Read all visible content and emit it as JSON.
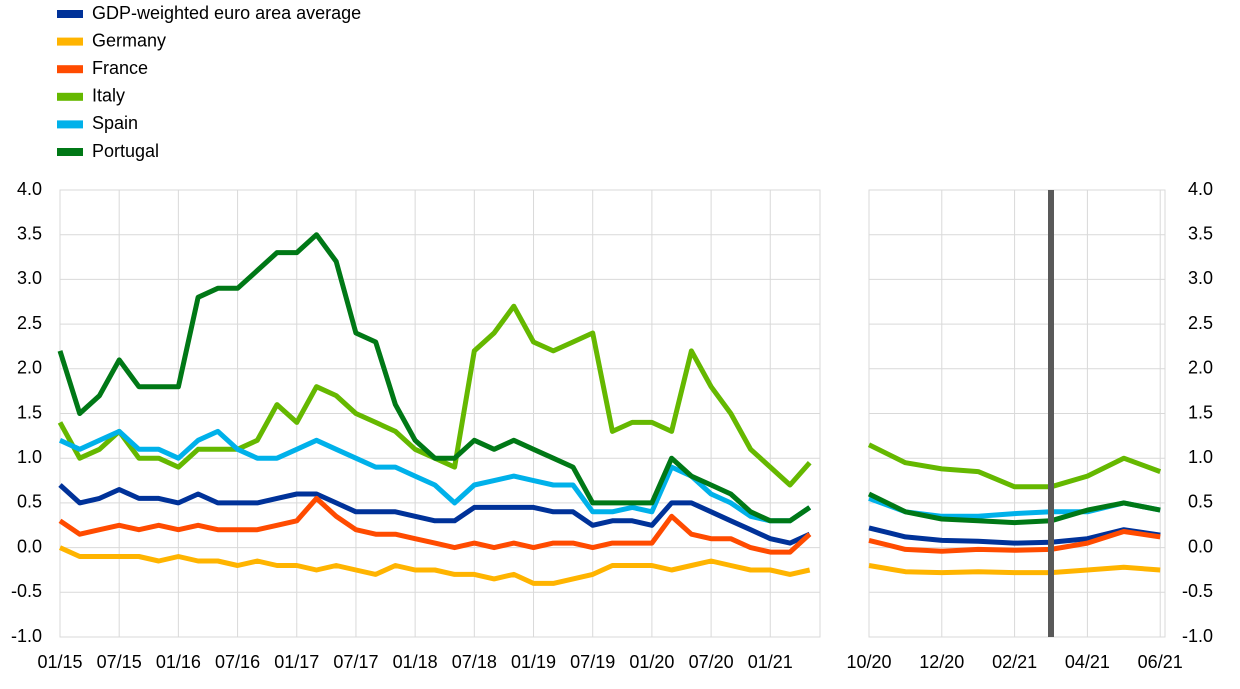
{
  "chart_data": [
    {
      "type": "line",
      "x": [
        "01/15",
        "03/15",
        "05/15",
        "07/15",
        "09/15",
        "11/15",
        "01/16",
        "03/16",
        "05/16",
        "07/16",
        "09/16",
        "11/16",
        "01/17",
        "03/17",
        "05/17",
        "07/17",
        "09/17",
        "11/17",
        "01/18",
        "03/18",
        "05/18",
        "07/18",
        "09/18",
        "11/18",
        "01/19",
        "03/19",
        "05/19",
        "07/19",
        "09/19",
        "11/19",
        "01/20",
        "03/20",
        "05/20",
        "07/20",
        "09/20",
        "11/20",
        "01/21",
        "03/21",
        "05/21"
      ],
      "xticks": [
        "01/15",
        "07/15",
        "01/16",
        "07/16",
        "01/17",
        "07/17",
        "01/18",
        "07/18",
        "01/19",
        "07/19",
        "01/20",
        "07/20",
        "01/21"
      ],
      "ylim": [
        -1,
        4
      ],
      "yticks": [
        {
          "value": -1,
          "label": "-1.0"
        },
        -0.5,
        {
          "value": 0,
          "label": "0.0"
        },
        0.5,
        {
          "value": 1,
          "label": "1.0"
        },
        1.5,
        {
          "value": 2,
          "label": "2.0"
        },
        2.5,
        {
          "value": 3,
          "label": "3.0"
        },
        3.5,
        {
          "value": 4,
          "label": "4.0"
        }
      ],
      "grid": true,
      "series": [
        {
          "name": "GDP-weighted euro area average",
          "color": "#003299",
          "values": [
            0.7,
            0.5,
            0.55,
            0.65,
            0.55,
            0.55,
            0.5,
            0.6,
            0.5,
            0.5,
            0.5,
            0.55,
            0.6,
            0.6,
            0.5,
            0.4,
            0.4,
            0.4,
            0.35,
            0.3,
            0.3,
            0.45,
            0.45,
            0.45,
            0.45,
            0.4,
            0.4,
            0.25,
            0.3,
            0.3,
            0.25,
            0.5,
            0.5,
            0.4,
            0.3,
            0.2,
            0.1,
            0.05,
            0.15
          ]
        },
        {
          "name": "Germany",
          "color": "#ffb400",
          "values": [
            0.0,
            -0.1,
            -0.1,
            -0.1,
            -0.1,
            -0.15,
            -0.1,
            -0.15,
            -0.15,
            -0.2,
            -0.15,
            -0.2,
            -0.2,
            -0.25,
            -0.2,
            -0.25,
            -0.3,
            -0.2,
            -0.25,
            -0.25,
            -0.3,
            -0.3,
            -0.35,
            -0.3,
            -0.4,
            -0.4,
            -0.35,
            -0.3,
            -0.2,
            -0.2,
            -0.2,
            -0.25,
            -0.2,
            -0.15,
            -0.2,
            -0.25,
            -0.25,
            -0.3,
            -0.25
          ]
        },
        {
          "name": "France",
          "color": "#ff4b00",
          "values": [
            0.3,
            0.15,
            0.2,
            0.25,
            0.2,
            0.25,
            0.2,
            0.25,
            0.2,
            0.2,
            0.2,
            0.25,
            0.3,
            0.55,
            0.35,
            0.2,
            0.15,
            0.15,
            0.1,
            0.05,
            0.0,
            0.05,
            0.0,
            0.05,
            0.0,
            0.05,
            0.05,
            0.0,
            0.05,
            0.05,
            0.05,
            0.35,
            0.15,
            0.1,
            0.1,
            0.0,
            -0.05,
            -0.05,
            0.15
          ]
        },
        {
          "name": "Italy",
          "color": "#65b800",
          "values": [
            1.4,
            1.0,
            1.1,
            1.3,
            1.0,
            1.0,
            0.9,
            1.1,
            1.1,
            1.1,
            1.2,
            1.6,
            1.4,
            1.8,
            1.7,
            1.5,
            1.4,
            1.3,
            1.1,
            1.0,
            0.9,
            2.2,
            2.4,
            2.7,
            2.3,
            2.2,
            2.3,
            2.4,
            1.3,
            1.4,
            1.4,
            1.3,
            2.2,
            1.8,
            1.5,
            1.1,
            0.9,
            0.7,
            0.95
          ]
        },
        {
          "name": "Spain",
          "color": "#00b1ea",
          "values": [
            1.2,
            1.1,
            1.2,
            1.3,
            1.1,
            1.1,
            1.0,
            1.2,
            1.3,
            1.1,
            1.0,
            1.0,
            1.1,
            1.2,
            1.1,
            1.0,
            0.9,
            0.9,
            0.8,
            0.7,
            0.5,
            0.7,
            0.75,
            0.8,
            0.75,
            0.7,
            0.7,
            0.4,
            0.4,
            0.45,
            0.4,
            0.9,
            0.8,
            0.6,
            0.5,
            0.35,
            0.3,
            0.3,
            0.45
          ]
        },
        {
          "name": "Portugal",
          "color": "#007816",
          "values": [
            2.2,
            1.5,
            1.7,
            2.1,
            1.8,
            1.8,
            1.8,
            2.8,
            2.9,
            2.9,
            3.1,
            3.3,
            3.3,
            3.5,
            3.2,
            2.4,
            2.3,
            1.6,
            1.2,
            1.0,
            1.0,
            1.2,
            1.1,
            1.2,
            1.1,
            1.0,
            0.9,
            0.5,
            0.5,
            0.5,
            0.5,
            1.0,
            0.8,
            0.7,
            0.6,
            0.4,
            0.3,
            0.3,
            0.45
          ]
        }
      ]
    },
    {
      "type": "line",
      "x": [
        "10/20",
        "11/20",
        "12/20",
        "01/21",
        "02/21",
        "03/21",
        "04/21",
        "05/21",
        "06/21"
      ],
      "xticks": [
        "10/20",
        "12/20",
        "02/21",
        "04/21",
        "06/21"
      ],
      "ylim": [
        -1,
        4
      ],
      "yticks": [
        {
          "value": -1,
          "label": "-1.0"
        },
        -0.5,
        {
          "value": 0,
          "label": "0.0"
        },
        0.5,
        {
          "value": 1,
          "label": "1.0"
        },
        1.5,
        {
          "value": 2,
          "label": "2.0"
        },
        2.5,
        {
          "value": 3,
          "label": "3.0"
        },
        3.5,
        {
          "value": 4,
          "label": "4.0"
        }
      ],
      "grid": true,
      "vline_x": "03/21",
      "series": [
        {
          "color": "#003299",
          "values": [
            0.22,
            0.12,
            0.08,
            0.07,
            0.05,
            0.06,
            0.1,
            0.2,
            0.14
          ]
        },
        {
          "color": "#ffb400",
          "values": [
            -0.2,
            -0.27,
            -0.28,
            -0.27,
            -0.28,
            -0.28,
            -0.25,
            -0.22,
            -0.25
          ]
        },
        {
          "color": "#ff4b00",
          "values": [
            0.08,
            -0.02,
            -0.04,
            -0.02,
            -0.03,
            -0.02,
            0.05,
            0.18,
            0.12
          ]
        },
        {
          "color": "#65b800",
          "values": [
            1.15,
            0.95,
            0.88,
            0.85,
            0.68,
            0.68,
            0.8,
            1.0,
            0.85
          ]
        },
        {
          "color": "#00b1ea",
          "values": [
            0.55,
            0.4,
            0.35,
            0.35,
            0.38,
            0.4,
            0.4,
            0.5,
            0.42
          ]
        },
        {
          "color": "#007816",
          "values": [
            0.6,
            0.4,
            0.32,
            0.3,
            0.28,
            0.3,
            0.42,
            0.5,
            0.42
          ]
        }
      ]
    }
  ]
}
